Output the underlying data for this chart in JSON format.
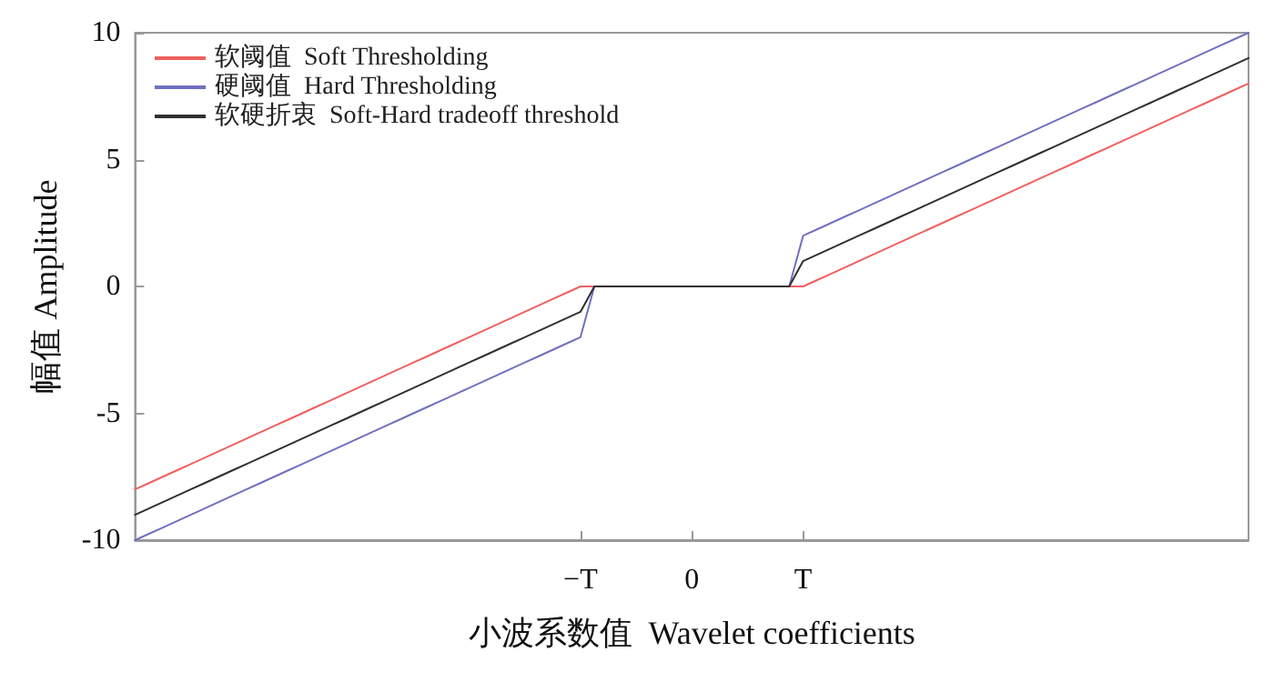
{
  "chart_data": {
    "type": "line",
    "xlabel": "小波系数值  Wavelet coefficients",
    "ylabel": "幅值 Amplitude",
    "categories": [
      null,
      null,
      null,
      null,
      null,
      null,
      null,
      null,
      null,
      null,
      null,
      null,
      null,
      null,
      null,
      null,
      null,
      null,
      null,
      null,
      null,
      null,
      null,
      null,
      null,
      null,
      null,
      null,
      null,
      null,
      null,
      null,
      "−T",
      null,
      null,
      null,
      null,
      null,
      null,
      null,
      "0",
      null,
      null,
      null,
      null,
      null,
      null,
      null,
      "T",
      null,
      null,
      null,
      null,
      null,
      null,
      null,
      null,
      null,
      null,
      null,
      null,
      null,
      null,
      null,
      null,
      null,
      null,
      null,
      null,
      null,
      null,
      null,
      null,
      null,
      null,
      null,
      null,
      null,
      null,
      null,
      null
    ],
    "ylim": [
      -10,
      10
    ],
    "yticks": [
      -10,
      -5,
      0,
      5,
      10
    ],
    "grid": false,
    "legend": "top left",
    "marker": "none",
    "line_style": "solid",
    "series": [
      {
        "name": "软阈值  Soft Thresholding",
        "color": "#f06060",
        "values": [
          -8,
          -7.75,
          -7.5,
          -7.25,
          -7,
          -6.75,
          -6.5,
          -6.25,
          -6,
          -5.75,
          -5.5,
          -5.25,
          -5,
          -4.75,
          -4.5,
          -4.25,
          -4,
          -3.75,
          -3.5,
          -3.25,
          -3,
          -2.75,
          -2.5,
          -2.25,
          -2,
          -1.75,
          -1.5,
          -1.25,
          -1,
          -0.75,
          -0.5,
          -0.25,
          0,
          0,
          0,
          0,
          0,
          0,
          0,
          0,
          0,
          0,
          0,
          0,
          0,
          0,
          0,
          0,
          0,
          0.25,
          0.5,
          0.75,
          1,
          1.25,
          1.5,
          1.75,
          2,
          2.25,
          2.5,
          2.75,
          3,
          3.25,
          3.5,
          3.75,
          4,
          4.25,
          4.5,
          4.75,
          5,
          5.25,
          5.5,
          5.75,
          6,
          6.25,
          6.5,
          6.75,
          7,
          7.25,
          7.5,
          7.75,
          8
        ]
      },
      {
        "name": "硬阈值  Hard Thresholding",
        "color": "#7070c0",
        "values": [
          -10,
          -9.75,
          -9.5,
          -9.25,
          -9,
          -8.75,
          -8.5,
          -8.25,
          -8,
          -7.75,
          -7.5,
          -7.25,
          -7,
          -6.75,
          -6.5,
          -6.25,
          -6,
          -5.75,
          -5.5,
          -5.25,
          -5,
          -4.75,
          -4.5,
          -4.25,
          -4,
          -3.75,
          -3.5,
          -3.25,
          -3,
          -2.75,
          -2.5,
          -2.25,
          -2,
          0,
          0,
          0,
          0,
          0,
          0,
          0,
          0,
          0,
          0,
          0,
          0,
          0,
          0,
          0,
          2,
          2.25,
          2.5,
          2.75,
          3,
          3.25,
          3.5,
          3.75,
          4,
          4.25,
          4.5,
          4.75,
          5,
          5.25,
          5.5,
          5.75,
          6,
          6.25,
          6.5,
          6.75,
          7,
          7.25,
          7.5,
          7.75,
          8,
          8.25,
          8.5,
          8.75,
          9,
          9.25,
          9.5,
          9.75,
          10
        ]
      },
      {
        "name": "软硬折衷  Soft-Hard tradeoff threshold",
        "color": "#303030",
        "values": [
          -9,
          -8.75,
          -8.5,
          -8.25,
          -8,
          -7.75,
          -7.5,
          -7.25,
          -7,
          -6.75,
          -6.5,
          -6.25,
          -6,
          -5.75,
          -5.5,
          -5.25,
          -5,
          -4.75,
          -4.5,
          -4.25,
          -4,
          -3.75,
          -3.5,
          -3.25,
          -3,
          -2.75,
          -2.5,
          -2.25,
          -2,
          -1.75,
          -1.5,
          -1.25,
          -1,
          0,
          0,
          0,
          0,
          0,
          0,
          0,
          0,
          0,
          0,
          0,
          0,
          0,
          0,
          0,
          1,
          1.25,
          1.5,
          1.75,
          2,
          2.25,
          2.5,
          2.75,
          3,
          3.25,
          3.5,
          3.75,
          4,
          4.25,
          4.5,
          4.75,
          5,
          5.25,
          5.5,
          5.75,
          6,
          6.25,
          6.5,
          6.75,
          7,
          7.25,
          7.5,
          7.75,
          8,
          8.25,
          8.5,
          8.75,
          9
        ]
      }
    ]
  }
}
